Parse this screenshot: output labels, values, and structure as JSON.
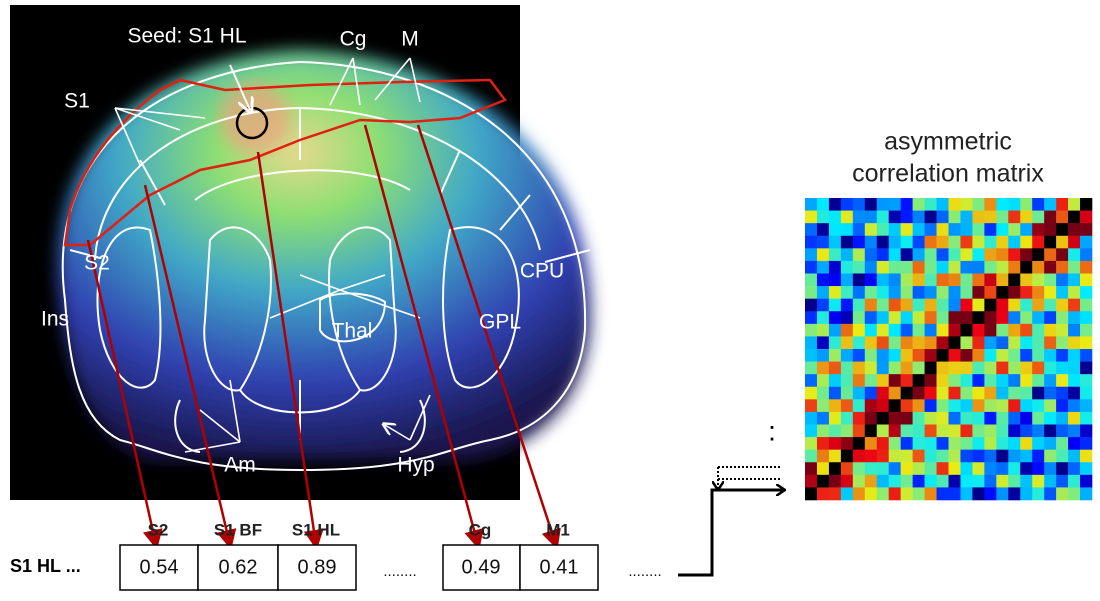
{
  "figure": {
    "brain_labels": [
      "Seed: S1 HL",
      "Cg",
      "M",
      "S1",
      "S2",
      "Ins",
      "CPU",
      "GPL",
      "Thal",
      "Am",
      "Hyp"
    ],
    "matrix_title": [
      "asymmetric",
      "correlation matrix"
    ],
    "table": {
      "row_label": "S1 HL ...",
      "columns": [
        "S2",
        "S1 BF",
        "S1 HL",
        "Cg",
        "M1"
      ],
      "values": [
        0.54,
        0.62,
        0.89,
        0.49,
        0.41
      ],
      "ellipsis": "........"
    },
    "vertical_ellipsis": ":"
  }
}
